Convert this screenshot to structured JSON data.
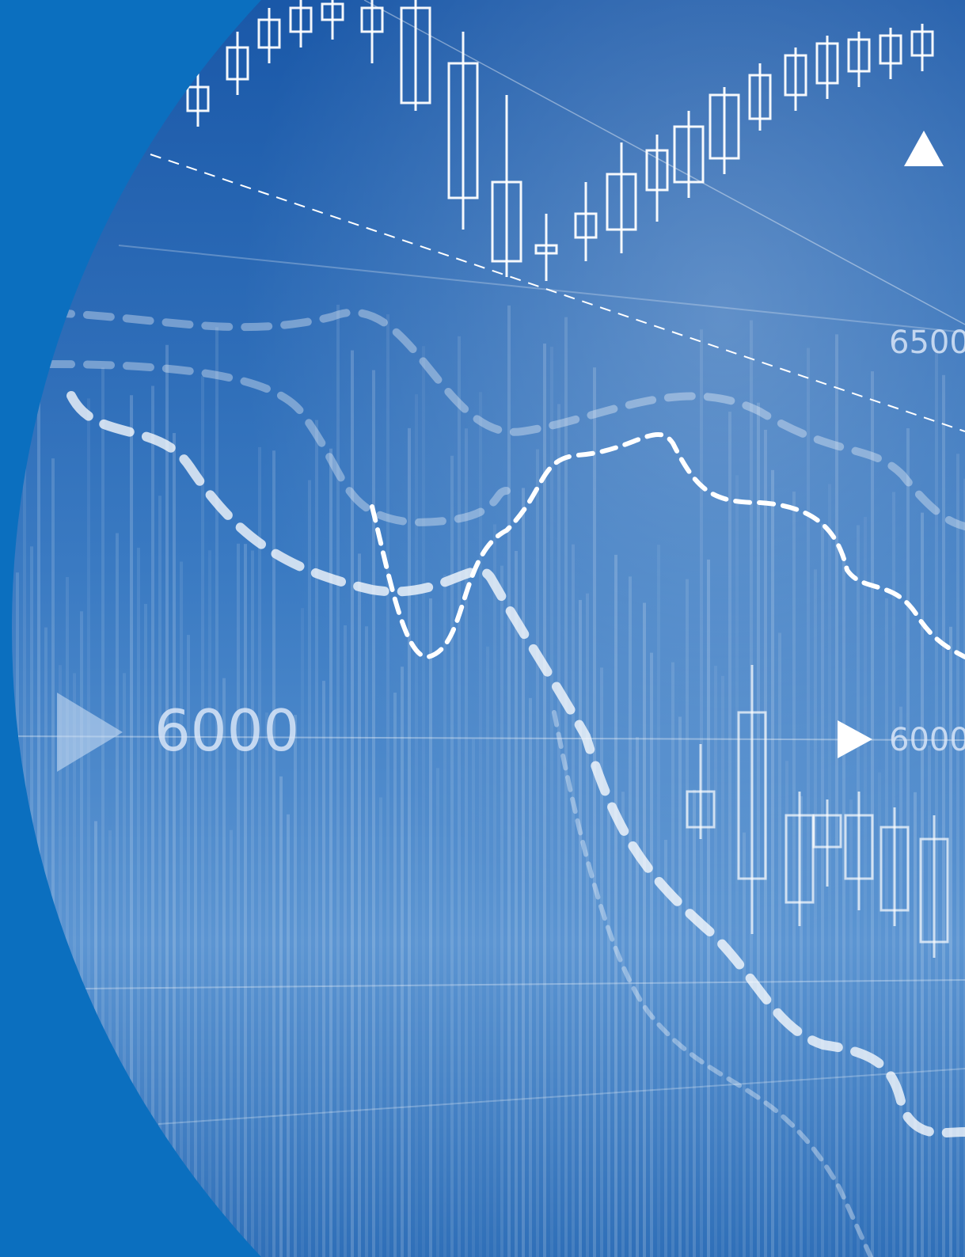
{
  "labels": {
    "left_level": "6000",
    "right_upper_level": "6500",
    "right_lower_level": "6000"
  }
}
